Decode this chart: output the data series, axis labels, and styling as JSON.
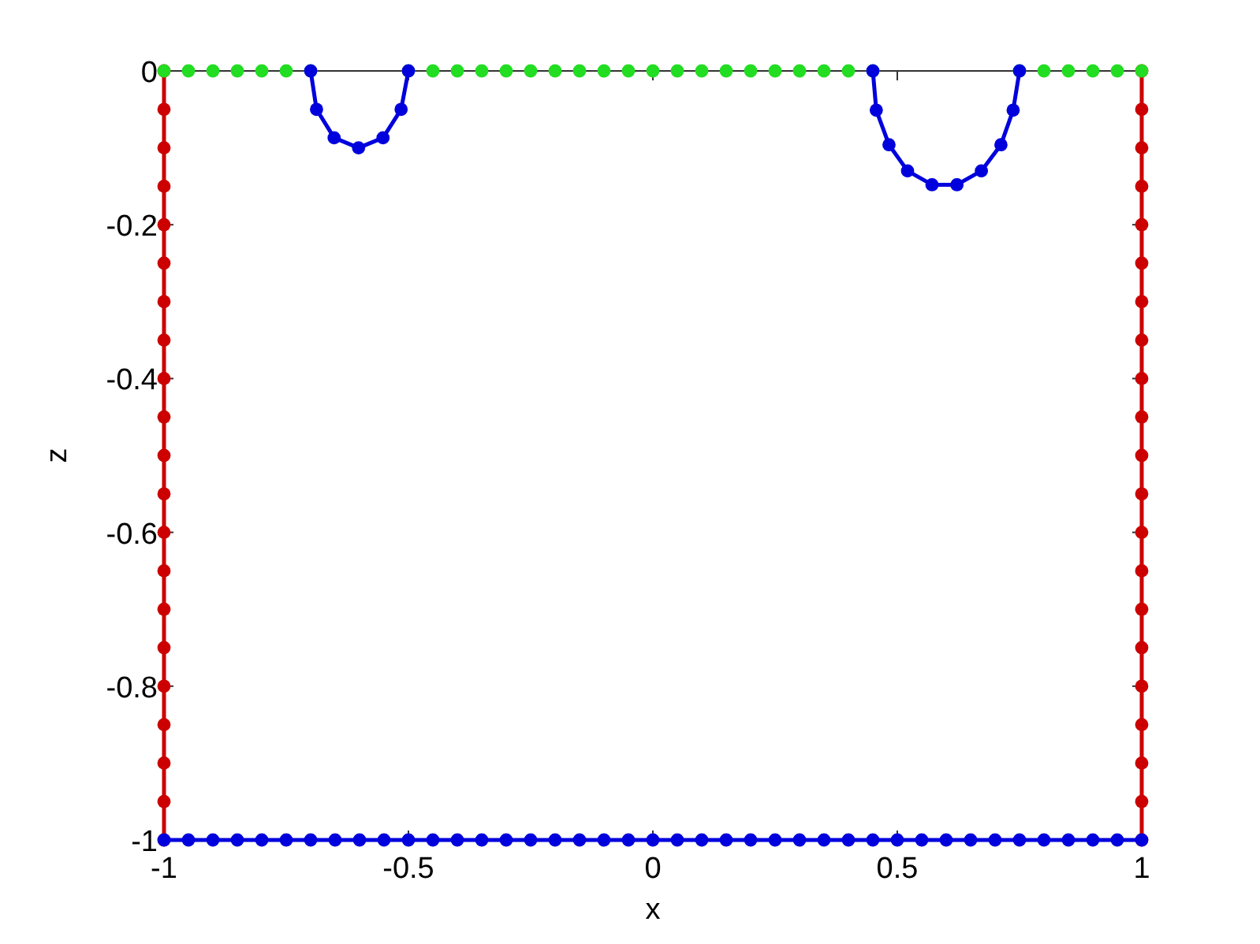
{
  "chart_data": {
    "type": "line",
    "xlabel": "x",
    "ylabel": "z",
    "xlim": [
      -1,
      1
    ],
    "ylim": [
      -1,
      0
    ],
    "xticks": [
      -1,
      -0.5,
      0,
      0.5,
      1
    ],
    "yticks": [
      -1,
      -0.8,
      -0.6,
      -0.4,
      -0.2,
      0
    ],
    "marker": "circle",
    "line_style": "solid",
    "series": [
      {
        "color": "#cc0000",
        "x": [
          -1,
          -1,
          -1,
          -1,
          -1,
          -1,
          -1,
          -1,
          -1,
          -1,
          -1,
          -1,
          -1,
          -1,
          -1,
          -1,
          -1,
          -1,
          -1,
          -1,
          -1
        ],
        "values": [
          0,
          -0.05,
          -0.1,
          -0.15,
          -0.2,
          -0.25,
          -0.3,
          -0.35,
          -0.4,
          -0.45,
          -0.5,
          -0.55,
          -0.6,
          -0.65,
          -0.7,
          -0.75,
          -0.8,
          -0.85,
          -0.9,
          -0.95,
          -1
        ]
      },
      {
        "color": "#cc0000",
        "x": [
          1,
          1,
          1,
          1,
          1,
          1,
          1,
          1,
          1,
          1,
          1,
          1,
          1,
          1,
          1,
          1,
          1,
          1,
          1,
          1,
          1
        ],
        "values": [
          0,
          -0.05,
          -0.1,
          -0.15,
          -0.2,
          -0.25,
          -0.3,
          -0.35,
          -0.4,
          -0.45,
          -0.5,
          -0.55,
          -0.6,
          -0.65,
          -0.7,
          -0.75,
          -0.8,
          -0.85,
          -0.9,
          -0.95,
          -1
        ]
      },
      {
        "type": "scatter",
        "color": "#22dd22",
        "x": [
          -1,
          -0.95,
          -0.9,
          -0.85,
          -0.8,
          -0.75,
          -0.7,
          -0.5,
          -0.45,
          -0.4,
          -0.35,
          -0.3,
          -0.25,
          -0.2,
          -0.15,
          -0.1,
          -0.05,
          0,
          0.05,
          0.1,
          0.15,
          0.2,
          0.25,
          0.3,
          0.35,
          0.4,
          0.45,
          0.75,
          0.8,
          0.85,
          0.9,
          0.95,
          1
        ],
        "values": [
          0,
          0,
          0,
          0,
          0,
          0,
          0,
          0,
          0,
          0,
          0,
          0,
          0,
          0,
          0,
          0,
          0,
          0,
          0,
          0,
          0,
          0,
          0,
          0,
          0,
          0,
          0,
          0,
          0,
          0,
          0,
          0,
          0
        ]
      },
      {
        "color": "#0000dd",
        "x": [
          -0.7,
          -0.688,
          -0.652,
          -0.602,
          -0.552,
          -0.515,
          -0.5
        ],
        "values": [
          0,
          -0.05,
          -0.087,
          -0.1,
          -0.087,
          -0.05,
          0
        ]
      },
      {
        "color": "#0000dd",
        "x": [
          0.45,
          0.457,
          0.483,
          0.521,
          0.571,
          0.622,
          0.672,
          0.712,
          0.737,
          0.75
        ],
        "values": [
          0,
          -0.051,
          -0.096,
          -0.13,
          -0.148,
          -0.148,
          -0.13,
          -0.096,
          -0.051,
          0
        ]
      },
      {
        "color": "#0000dd",
        "x": [
          -1,
          -0.95,
          -0.9,
          -0.85,
          -0.8,
          -0.75,
          -0.7,
          -0.65,
          -0.6,
          -0.55,
          -0.5,
          -0.45,
          -0.4,
          -0.35,
          -0.3,
          -0.25,
          -0.2,
          -0.15,
          -0.1,
          -0.05,
          0,
          0.05,
          0.1,
          0.15,
          0.2,
          0.25,
          0.3,
          0.35,
          0.4,
          0.45,
          0.5,
          0.55,
          0.6,
          0.65,
          0.7,
          0.75,
          0.8,
          0.85,
          0.9,
          0.95,
          1
        ],
        "values": [
          -1,
          -1,
          -1,
          -1,
          -1,
          -1,
          -1,
          -1,
          -1,
          -1,
          -1,
          -1,
          -1,
          -1,
          -1,
          -1,
          -1,
          -1,
          -1,
          -1,
          -1,
          -1,
          -1,
          -1,
          -1,
          -1,
          -1,
          -1,
          -1,
          -1,
          -1,
          -1,
          -1,
          -1,
          -1,
          -1,
          -1,
          -1,
          -1,
          -1,
          -1
        ]
      }
    ]
  }
}
